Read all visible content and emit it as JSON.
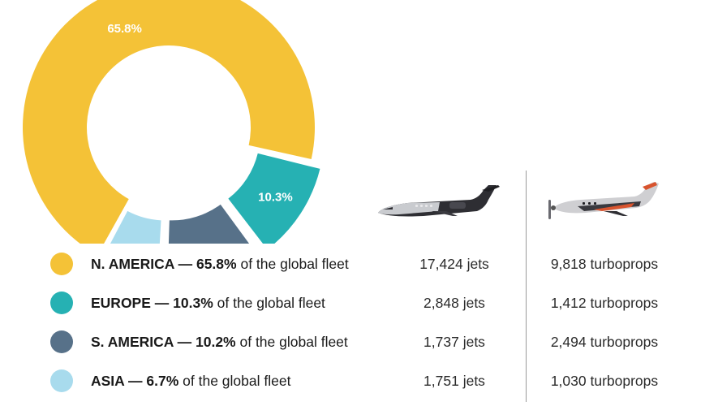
{
  "chart_data": {
    "type": "pie",
    "style": "donut",
    "slices": [
      {
        "label": "N. AMERICA",
        "value": 65.8,
        "display": "65.8%",
        "color": "#f4c237"
      },
      {
        "label": "EUROPE",
        "value": 10.3,
        "display": "10.3%",
        "color": "#26b1b3"
      },
      {
        "label": "S. AMERICA",
        "value": 10.2,
        "display": "10.2%",
        "color": "#577189"
      },
      {
        "label": "ASIA",
        "value": 6.7,
        "display": "6.7%",
        "color": "#a8dbed"
      }
    ],
    "legend_placement": "bottom"
  },
  "legend": [
    {
      "region": "N. AMERICA",
      "dash": " — ",
      "pct": "65.8%",
      "suffix": " of the global fleet",
      "jets": "17,424 jets",
      "turboprops": "9,818 turboprops",
      "color": "#f4c237"
    },
    {
      "region": "EUROPE",
      "dash": " — ",
      "pct": "10.3%",
      "suffix": " of the global fleet",
      "jets": "2,848 jets",
      "turboprops": "1,412 turboprops",
      "color": "#26b1b3"
    },
    {
      "region": "S. AMERICA",
      "dash": " — ",
      "pct": "10.2%",
      "suffix": " of the global fleet",
      "jets": "1,737 jets",
      "turboprops": "2,494 turboprops",
      "color": "#577189"
    },
    {
      "region": "ASIA",
      "dash": " — ",
      "pct": "6.7%",
      "suffix": " of the global fleet",
      "jets": "1,751 jets",
      "turboprops": "1,030 turboprops",
      "color": "#a8dbed"
    }
  ],
  "icons": {
    "jet": "business-jet-icon",
    "turboprop": "turboprop-plane-icon"
  }
}
